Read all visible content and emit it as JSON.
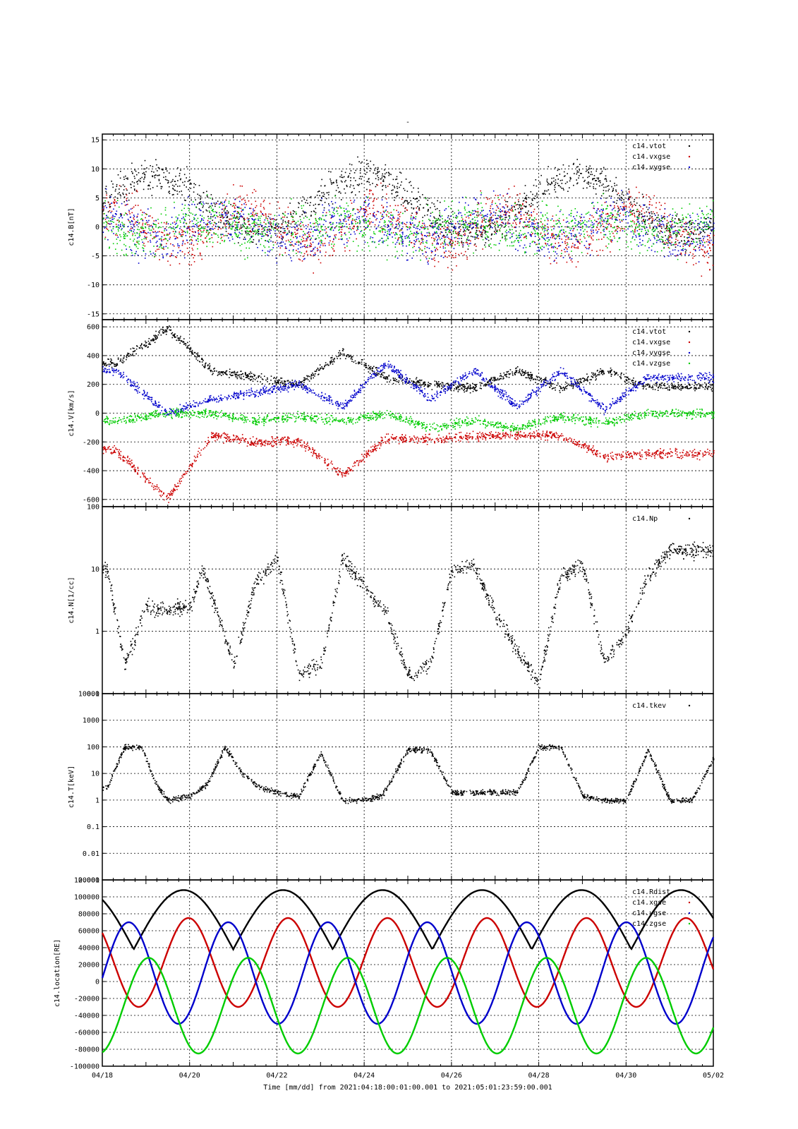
{
  "top_mark": "-",
  "footer": "Time [mm/dd]  from 2021:04:18:00:01:00.001  to  2021:05:01:23:59:00.001",
  "colors": {
    "black": "#000000",
    "red": "#cc0000",
    "blue": "#0000cc",
    "green": "#00cc00"
  },
  "chart_data": [
    {
      "type": "scatter",
      "ylabel": "c14.B[nT]",
      "ylim": [
        -16,
        16
      ],
      "yticks": [
        "15",
        "10",
        "5",
        "0",
        "-5",
        "-10",
        "-15"
      ],
      "legend_position": "top-right",
      "x_range_days": [
        0,
        14
      ],
      "series": [
        {
          "name": "c14.vtot",
          "color": "#000000"
        },
        {
          "name": "c14.vxgse",
          "color": "#cc0000"
        },
        {
          "name": "c14.vygse",
          "color": "#0000cc"
        }
      ]
    },
    {
      "type": "scatter",
      "ylabel": "c14.V[km/s]",
      "ylim": [
        -650,
        650
      ],
      "yticks": [
        "600",
        "400",
        "200",
        "0",
        "-200",
        "-400",
        "-600"
      ],
      "legend_position": "top-right",
      "series": [
        {
          "name": "c14.vtot",
          "color": "#000000",
          "x": [
            0.3,
            1.5,
            2.5,
            3.5,
            4.5,
            5.5,
            6.5,
            7.5,
            8.5,
            9.5,
            10.5,
            11.5,
            12.5
          ],
          "y": [
            350,
            590,
            300,
            250,
            200,
            420,
            250,
            200,
            180,
            300,
            170,
            300,
            190
          ]
        },
        {
          "name": "c14.vxgse",
          "color": "#cc0000",
          "x": [
            0.3,
            1.5,
            2.5,
            3.5,
            4.5,
            5.5,
            6.5,
            7.5,
            8.5,
            9.5,
            10.5,
            11.5,
            12.5
          ],
          "y": [
            -250,
            -590,
            -150,
            -200,
            -190,
            -430,
            -170,
            -180,
            -160,
            -150,
            -150,
            -300,
            -280
          ]
        },
        {
          "name": "c14.vygse",
          "color": "#0000cc",
          "x": [
            0.3,
            1.5,
            2.5,
            3.5,
            4.5,
            5.5,
            6.5,
            7.5,
            8.5,
            9.5,
            10.5,
            11.5,
            12.5
          ],
          "y": [
            300,
            0,
            100,
            150,
            200,
            50,
            350,
            100,
            300,
            50,
            300,
            30,
            250
          ]
        },
        {
          "name": "c14.vzgse",
          "color": "#00cc00",
          "x": [
            0.3,
            1.5,
            2.5,
            3.5,
            4.5,
            5.5,
            6.5,
            7.5,
            8.5,
            9.5,
            10.5,
            11.5,
            12.5
          ],
          "y": [
            -50,
            0,
            0,
            -50,
            -20,
            -50,
            0,
            -100,
            -50,
            -100,
            -20,
            -60,
            0
          ]
        }
      ]
    },
    {
      "type": "scatter",
      "ylabel": "c14.N[1/cc]",
      "ylim": [
        0.1,
        100
      ],
      "yscale": "log",
      "yticks": [
        "100",
        "10",
        "1",
        "0.1"
      ],
      "legend_position": "top-right",
      "series": [
        {
          "name": "c14.Np",
          "color": "#000000",
          "x": [
            0.1,
            0.5,
            1.0,
            1.5,
            2.0,
            2.3,
            3.0,
            3.5,
            4.0,
            4.5,
            5.0,
            5.5,
            6.0,
            6.5,
            7.0,
            7.5,
            8.0,
            8.5,
            9.0,
            9.5,
            10.0,
            10.5,
            11.0,
            11.5,
            12.0,
            12.5,
            13.0
          ],
          "y": [
            10,
            0.3,
            2.5,
            2.2,
            2.5,
            10,
            0.3,
            6,
            15,
            0.2,
            0.3,
            15,
            5,
            2,
            0.2,
            0.3,
            10,
            12,
            2,
            0.5,
            0.15,
            8,
            12,
            0.3,
            1,
            8,
            20
          ]
        }
      ]
    },
    {
      "type": "scatter",
      "ylabel": "c14.T[keV]",
      "ylim": [
        0.001,
        10000
      ],
      "yscale": "log",
      "yticks": [
        "10000",
        "1000",
        "100",
        "10",
        "1",
        "0.1",
        "0.01",
        "0.001"
      ],
      "legend_position": "top-right",
      "series": [
        {
          "name": "c14.tkev",
          "color": "#000000",
          "x": [
            0.1,
            0.5,
            0.9,
            1.2,
            1.5,
            2.0,
            2.4,
            2.8,
            3.2,
            3.6,
            4.0,
            4.5,
            5.0,
            5.5,
            6.0,
            6.4,
            7.0,
            7.5,
            8.0,
            8.5,
            9.0,
            9.5,
            10.0,
            10.5,
            11.0,
            11.5,
            12.0,
            12.5,
            13.0,
            13.5,
            14.0
          ],
          "y": [
            3,
            100,
            100,
            5,
            1,
            1.5,
            4,
            100,
            10,
            3,
            2,
            1.5,
            60,
            1,
            1,
            1.5,
            80,
            80,
            2,
            2,
            2,
            2,
            100,
            100,
            1.5,
            1,
            1,
            80,
            1,
            1,
            40
          ]
        }
      ]
    },
    {
      "type": "line",
      "ylabel": "c14.location[RE]",
      "ylim": [
        -100000,
        120000
      ],
      "yticks": [
        "120000",
        "100000",
        "80000",
        "60000",
        "40000",
        "20000",
        "0",
        "-20000",
        "-40000",
        "-60000",
        "-80000",
        "-100000"
      ],
      "xlabel": "Time [mm/dd]",
      "xticks": [
        "04/18",
        "04/20",
        "04/22",
        "04/24",
        "04/26",
        "04/28",
        "04/30",
        "05/02"
      ],
      "legend_position": "top-right",
      "orbit_period_days": 2.28,
      "series": [
        {
          "name": "c14.Rdist",
          "color": "#000000",
          "minimum": 38000,
          "maximum": 108000,
          "first_minimum_day": 0.72
        },
        {
          "name": "c14.xgse",
          "color": "#cc0000",
          "minimum": -30000,
          "maximum": 75000
        },
        {
          "name": "c14.ygse",
          "color": "#0000cc",
          "minimum": -50000,
          "maximum": 70000
        },
        {
          "name": "c14.zgse",
          "color": "#00cc00",
          "minimum": -85000,
          "maximum": 28000
        }
      ]
    }
  ]
}
